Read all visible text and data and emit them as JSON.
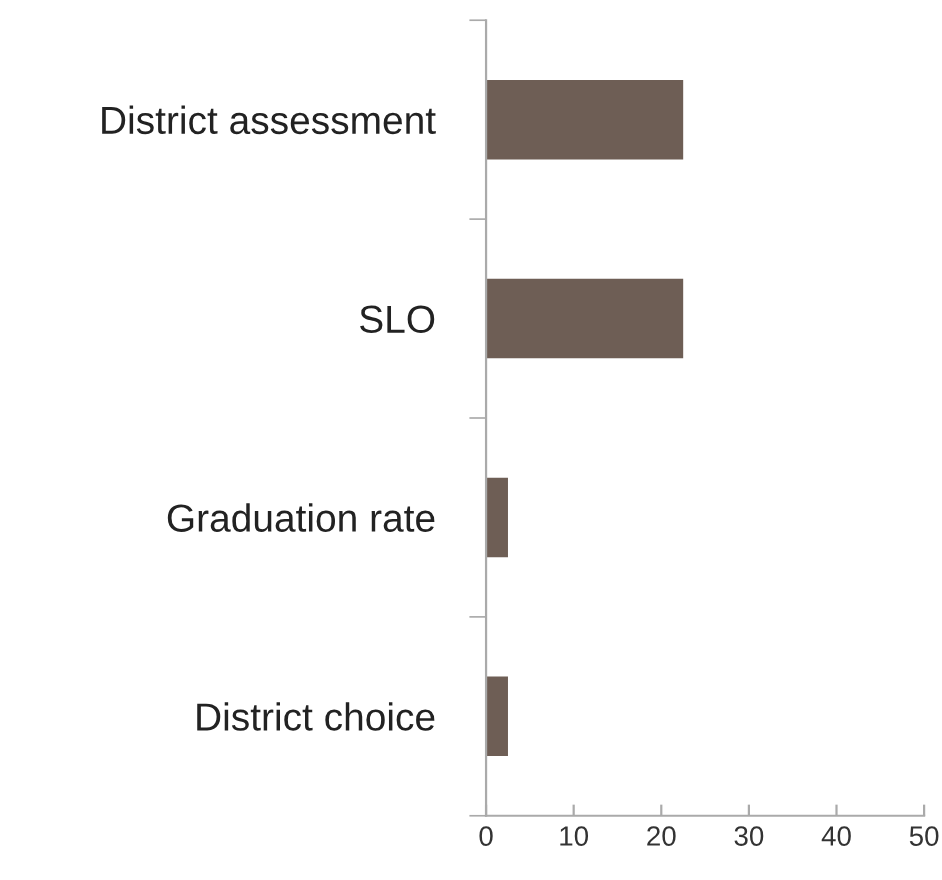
{
  "chart_data": {
    "type": "bar",
    "orientation": "horizontal",
    "categories": [
      "District assessment",
      "SLO",
      "Graduation rate",
      "District choice"
    ],
    "values": [
      22.5,
      22.5,
      2.5,
      2.5
    ],
    "color": "#6e5e55",
    "xlim": [
      0,
      50
    ],
    "xticks": [
      0,
      10,
      20,
      30,
      40,
      50
    ],
    "grid": false,
    "legend": false
  }
}
